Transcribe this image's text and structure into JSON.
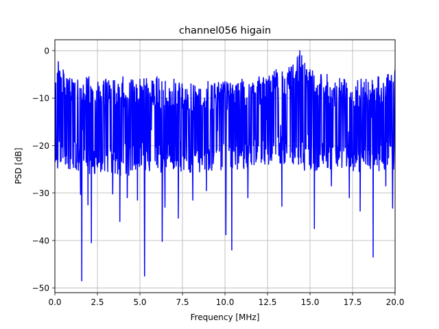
{
  "chart_data": {
    "type": "line",
    "title": "channel056 higain",
    "xlabel": "Frequency [MHz]",
    "ylabel": "PSD [dB]",
    "xlim": [
      0,
      20
    ],
    "ylim": [
      -51,
      2.3
    ],
    "grid": true,
    "x_ticks": [
      0.0,
      2.5,
      5.0,
      7.5,
      10.0,
      12.5,
      15.0,
      17.5,
      20.0
    ],
    "x_tick_labels": [
      "0.0",
      "2.5",
      "5.0",
      "7.5",
      "10.0",
      "12.5",
      "15.0",
      "17.5",
      "20.0"
    ],
    "y_ticks": [
      0,
      -10,
      -20,
      -30,
      -40,
      -50
    ],
    "y_tick_labels": [
      "0",
      "−10",
      "−20",
      "−30",
      "−40",
      "−50"
    ],
    "series": [
      {
        "color": "#0000ff",
        "baseline_db": -15,
        "upper_envelope": {
          "x": [
            0,
            0.2,
            1.0,
            2.0,
            3.0,
            4.0,
            5.0,
            6.0,
            7.0,
            8.0,
            9.0,
            10.0,
            11.0,
            12.0,
            13.0,
            14.0,
            14.4,
            15.0,
            16.0,
            17.0,
            18.0,
            19.0,
            20.0
          ],
          "y": [
            -8,
            -2.3,
            -6,
            -5.5,
            -6,
            -5.5,
            -6,
            -5.5,
            -6,
            -7,
            -6.5,
            -6.5,
            -6,
            -5.5,
            -4,
            -3,
            0,
            -4,
            -5,
            -6,
            -6,
            -5.5,
            -4
          ]
        },
        "lower_envelope": {
          "x": [
            0,
            1.0,
            2.0,
            3.0,
            4.0,
            5.0,
            6.0,
            7.0,
            8.0,
            9.0,
            10.0,
            11.0,
            12.0,
            13.0,
            14.0,
            15.0,
            16.0,
            17.0,
            18.0,
            19.0,
            20.0
          ],
          "y": [
            -25,
            -25,
            -26,
            -26,
            -27,
            -25,
            -26,
            -25,
            -26,
            -26,
            -25,
            -25,
            -24,
            -24,
            -24,
            -26,
            -25,
            -25,
            -26,
            -26,
            -25
          ]
        },
        "deep_dips": [
          {
            "x": 1.58,
            "y": -48.5
          },
          {
            "x": 1.5,
            "y": -30.3
          },
          {
            "x": 1.95,
            "y": -32.5
          },
          {
            "x": 2.15,
            "y": -40.5
          },
          {
            "x": 3.4,
            "y": -30.2
          },
          {
            "x": 3.82,
            "y": -36.0
          },
          {
            "x": 4.25,
            "y": -31.0
          },
          {
            "x": 4.85,
            "y": -31.5
          },
          {
            "x": 5.28,
            "y": -47.5
          },
          {
            "x": 6.3,
            "y": -40.2
          },
          {
            "x": 6.48,
            "y": -33.0
          },
          {
            "x": 7.25,
            "y": -35.3
          },
          {
            "x": 8.1,
            "y": -31.5
          },
          {
            "x": 8.9,
            "y": -29.5
          },
          {
            "x": 10.05,
            "y": -38.8
          },
          {
            "x": 10.4,
            "y": -42.0
          },
          {
            "x": 11.35,
            "y": -31.0
          },
          {
            "x": 13.35,
            "y": -32.8
          },
          {
            "x": 15.25,
            "y": -37.5
          },
          {
            "x": 16.25,
            "y": -28.5
          },
          {
            "x": 17.3,
            "y": -31.0
          },
          {
            "x": 17.95,
            "y": -33.8
          },
          {
            "x": 18.7,
            "y": -43.5
          },
          {
            "x": 19.45,
            "y": -28.5
          },
          {
            "x": 19.85,
            "y": -33.2
          }
        ]
      }
    ]
  }
}
